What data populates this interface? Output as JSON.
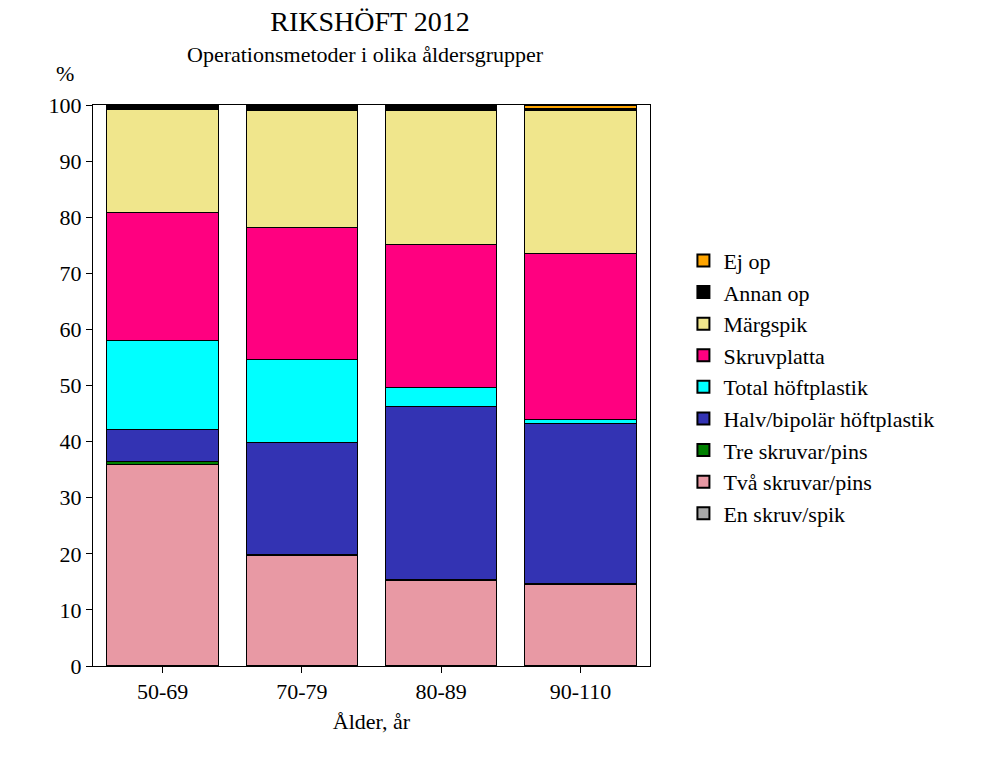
{
  "chart_data": {
    "type": "bar",
    "stacked": true,
    "title": "RIKSHÖFT 2012",
    "subtitle": "Operationsmetoder i olika åldersgrupper",
    "x_label": "Ålder, år",
    "y_label": "%",
    "categories": [
      "50-69",
      "70-79",
      "80-89",
      "90-110"
    ],
    "ylim": [
      0,
      100
    ],
    "yticks": [
      0,
      10,
      20,
      30,
      40,
      50,
      60,
      70,
      80,
      90,
      100
    ],
    "grid": false,
    "legend": "right",
    "series": [
      {
        "name": "En skruv/spik",
        "color": "#A9A9A9",
        "values": [
          0.1,
          0.1,
          0.1,
          0.1
        ]
      },
      {
        "name": "Två skruvar/pins",
        "color": "#E899A4",
        "values": [
          35.8,
          19.6,
          15.2,
          14.5
        ]
      },
      {
        "name": "Tre skruvar/pins",
        "color": "#008000",
        "values": [
          0.5,
          0.2,
          0.1,
          0.1
        ]
      },
      {
        "name": "Halv/bipolär höftplastik",
        "color": "#3333B3",
        "values": [
          5.8,
          20.0,
          30.9,
          28.6
        ]
      },
      {
        "name": "Total höftplastik",
        "color": "#00FFFF",
        "values": [
          15.9,
          14.8,
          3.3,
          0.6
        ]
      },
      {
        "name": "Skruvplatta",
        "color": "#FF0080",
        "values": [
          22.8,
          23.4,
          25.6,
          29.7
        ]
      },
      {
        "name": "Märgspik",
        "color": "#F0E68C",
        "values": [
          18.3,
          21.0,
          23.9,
          25.4
        ]
      },
      {
        "name": "Annan op",
        "color": "#000000",
        "values": [
          0.5,
          0.6,
          0.6,
          0.3
        ]
      },
      {
        "name": "Ej op",
        "color": "#FFA500",
        "values": [
          0.3,
          0.3,
          0.3,
          0.7
        ]
      }
    ]
  }
}
